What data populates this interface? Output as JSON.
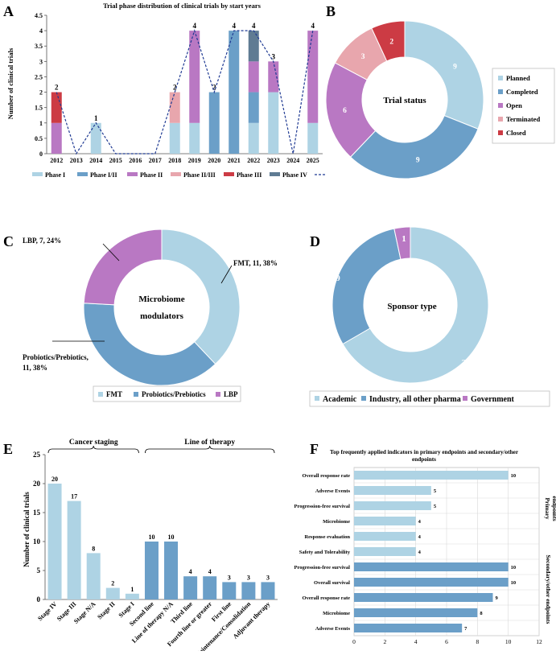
{
  "colors": {
    "phase1": "#aed3e4",
    "phase12": "#6b9fc8",
    "phase2": "#b978c3",
    "phase23": "#e8a6ad",
    "phase3": "#cc3b44",
    "phase4": "#5f7b93",
    "total": "#1f3a93",
    "axis": "#555555",
    "grid": "#d9d9d9"
  },
  "panels": {
    "a": "A",
    "b": "B",
    "c": "C",
    "d": "D",
    "e": "E",
    "f": "F"
  },
  "chart_data": [
    {
      "id": "A",
      "type": "bar",
      "stacked": true,
      "title": "Trial phase distribution of clinical trials by start years",
      "xlabel": "",
      "ylabel": "Number of clinical trials",
      "ylim": [
        0,
        4.5
      ],
      "yticks": [
        "0",
        "0.5",
        "1",
        "1.5",
        "2",
        "2.5",
        "3",
        "3.5",
        "4",
        "4.5"
      ],
      "categories": [
        "2012",
        "2013",
        "2014",
        "2015",
        "2016",
        "2017",
        "2018",
        "2019",
        "2020",
        "2021",
        "2022",
        "2023",
        "2024",
        "2025"
      ],
      "series": [
        {
          "name": "Phase I",
          "color": "#aed3e4",
          "values": [
            0,
            0,
            1,
            0,
            0,
            0,
            1,
            1,
            0,
            0,
            1,
            2,
            0,
            1
          ]
        },
        {
          "name": "Phase I/II",
          "color": "#6b9fc8",
          "values": [
            0,
            0,
            0,
            0,
            0,
            0,
            0,
            0,
            2,
            4,
            1,
            0,
            0,
            0
          ]
        },
        {
          "name": "Phase II",
          "color": "#b978c3",
          "values": [
            1,
            0,
            0,
            0,
            0,
            0,
            0,
            3,
            0,
            0,
            1,
            1,
            0,
            3
          ]
        },
        {
          "name": "Phase II/III",
          "color": "#e8a6ad",
          "values": [
            0,
            0,
            0,
            0,
            0,
            0,
            1,
            0,
            0,
            0,
            0,
            0,
            0,
            0
          ]
        },
        {
          "name": "Phase III",
          "color": "#cc3b44",
          "values": [
            1,
            0,
            0,
            0,
            0,
            0,
            0,
            0,
            0,
            0,
            0,
            0,
            0,
            0
          ]
        },
        {
          "name": "Phase IV",
          "color": "#5f7b93",
          "values": [
            0,
            0,
            0,
            0,
            0,
            0,
            0,
            0,
            0,
            0,
            1,
            0,
            0,
            0
          ]
        }
      ],
      "total": {
        "name": "Total",
        "values": [
          2,
          0,
          1,
          0,
          0,
          0,
          2,
          4,
          2,
          4,
          4,
          3,
          0,
          4
        ]
      },
      "total_labels": [
        "2",
        "",
        "1",
        "",
        "",
        "",
        "2",
        "4",
        "2",
        "4",
        "4",
        "3",
        "",
        "4"
      ],
      "legend": "bottom"
    },
    {
      "id": "B",
      "type": "pie",
      "donut": true,
      "title": "Trial status",
      "slices": [
        {
          "name": "Planned",
          "value": 9,
          "color": "#aed3e4"
        },
        {
          "name": "Completed",
          "value": 9,
          "color": "#6b9fc8"
        },
        {
          "name": "Open",
          "value": 6,
          "color": "#b978c3"
        },
        {
          "name": "Terminated",
          "value": 3,
          "color": "#e8a6ad"
        },
        {
          "name": "Closed",
          "value": 2,
          "color": "#cc3b44"
        }
      ],
      "legend": "right"
    },
    {
      "id": "C",
      "type": "pie",
      "donut": true,
      "title": "Microbiome modulators",
      "title_lines": [
        "Microbiome",
        "modulators"
      ],
      "slices": [
        {
          "name": "FMT",
          "value": 11,
          "color": "#aed3e4",
          "label": "FMT, 11, 38%"
        },
        {
          "name": "Probiotics/Prebiotics",
          "value": 11,
          "color": "#6b9fc8",
          "label_lines": [
            "Probiotics/Prebiotics,",
            "11, 38%"
          ]
        },
        {
          "name": "LBP",
          "value": 7,
          "color": "#b978c3",
          "label": "LBP, 7, 24%"
        }
      ],
      "legend": "bottom"
    },
    {
      "id": "D",
      "type": "pie",
      "donut": true,
      "title": "Sponsor type",
      "slices": [
        {
          "name": "Academic",
          "value": 20,
          "color": "#aed3e4"
        },
        {
          "name": "Industry, all other pharma",
          "value": 9,
          "color": "#6b9fc8"
        },
        {
          "name": "Government",
          "value": 1,
          "color": "#b978c3"
        }
      ],
      "legend": "bottom"
    },
    {
      "id": "E",
      "type": "bar",
      "ylabel": "Number of clinical trials",
      "ylim": [
        0,
        25
      ],
      "yticks": [
        "0",
        "5",
        "10",
        "15",
        "20",
        "25"
      ],
      "groups": [
        {
          "name": "Cancer staging",
          "color": "#aed3e4",
          "categories": [
            "Stage IV",
            "Stage III",
            "Stage N/A",
            "Stage II",
            "Stage I"
          ],
          "values": [
            20,
            17,
            8,
            2,
            1
          ]
        },
        {
          "name": "Line of therapy",
          "color": "#6b9fc8",
          "categories": [
            "Second line",
            "Line of therapy N/A",
            "Third line",
            "Fourth line or greater",
            "First line",
            "Maintenance/Consolidation",
            "Adjuvant therapy"
          ],
          "values": [
            10,
            10,
            4,
            4,
            3,
            3,
            3
          ]
        }
      ]
    },
    {
      "id": "F",
      "type": "bar",
      "orientation": "horizontal",
      "title": "Top frequently applied indicators in primary endpoints and secondary/other endpoints",
      "title_lines": [
        "Top frequently applied indicators in primary endpoints and secondary/other",
        "endpoints"
      ],
      "xlim": [
        0,
        12
      ],
      "xticks": [
        "0",
        "2",
        "4",
        "6",
        "8",
        "10",
        "12"
      ],
      "groups": [
        {
          "name": "Primary endpoints",
          "name_lines": [
            "Primary",
            "endpoints"
          ],
          "color": "#aed3e4",
          "categories": [
            "Overall response rate",
            "Adverse Events",
            "Progression-free survival",
            "Microbiome",
            "Response evaluation",
            "Safety and Tolerability"
          ],
          "values": [
            10,
            5,
            5,
            4,
            4,
            4
          ]
        },
        {
          "name": "Secondary/other endpoints",
          "color": "#6b9fc8",
          "categories": [
            "Progression-free survival",
            "Overall survival",
            "Overall response rate",
            "Microbiome",
            "Adverse Events"
          ],
          "values": [
            10,
            10,
            9,
            8,
            7
          ]
        }
      ]
    }
  ]
}
